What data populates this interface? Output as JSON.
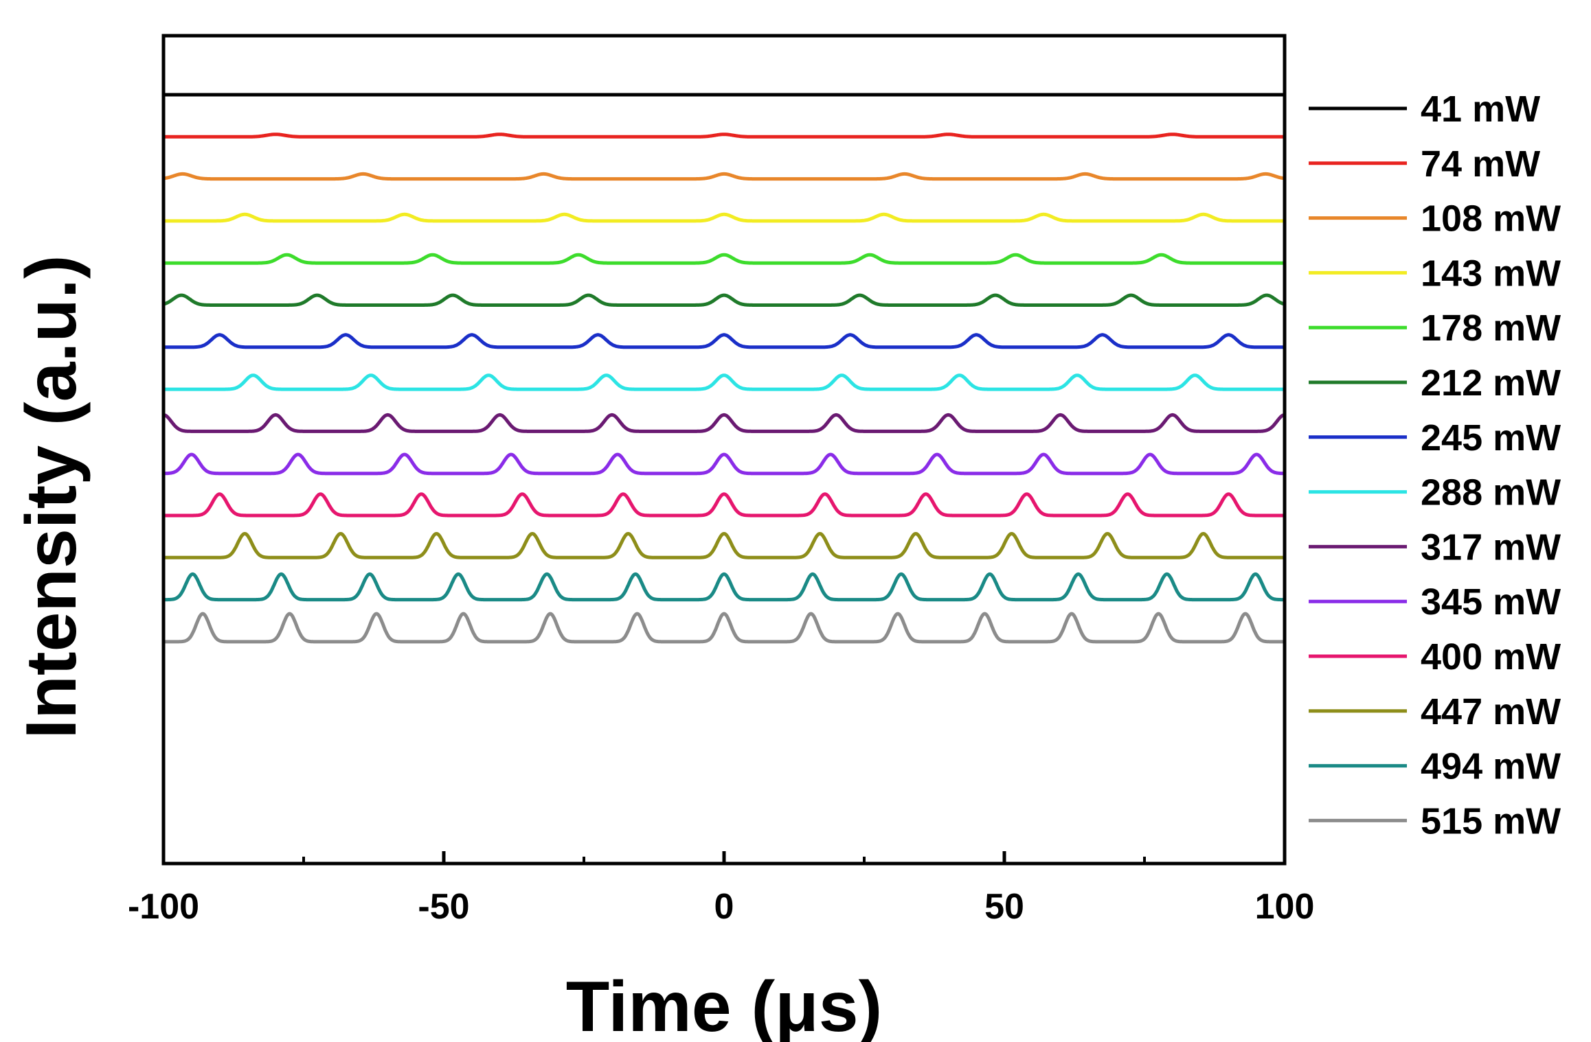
{
  "chart_data": {
    "type": "line",
    "title": "",
    "xlabel": "Time (μs)",
    "ylabel": "Intensity (a.u.)",
    "xlim": [
      -100,
      100
    ],
    "xticks": [
      -100,
      -50,
      0,
      50,
      100
    ],
    "x_tick_labels": [
      "-100",
      "-50",
      "0",
      "50",
      "100"
    ],
    "y_ticks_shown": false,
    "grid": false,
    "legend_position": "right",
    "description_units": {
      "period": "μs",
      "peak_height": "a.u. (relative)"
    },
    "series": [
      {
        "name": "41 mW",
        "color": "#000000",
        "period": null,
        "peak_times": [],
        "peak_height": 0
      },
      {
        "name": "74 mW",
        "color": "#e8231f",
        "period": 40.0,
        "peak_times": [
          -80,
          -40,
          0,
          40,
          80
        ],
        "peak_height": 0.06
      },
      {
        "name": "108 mW",
        "color": "#e8862a",
        "period": 32.2,
        "peak_times": [
          -96.6,
          -64.4,
          -32.2,
          0,
          32.2,
          64.4,
          96.6
        ],
        "peak_height": 0.12
      },
      {
        "name": "143 mW",
        "color": "#f2ec22",
        "period": 28.5,
        "peak_times": [
          -85.5,
          -57.0,
          -28.5,
          0,
          28.5,
          57.0,
          85.5
        ],
        "peak_height": 0.16
      },
      {
        "name": "178 mW",
        "color": "#3ddc2c",
        "period": 26.0,
        "peak_times": [
          -78.0,
          -52.0,
          -26.0,
          0,
          26.0,
          52.0,
          78.0
        ],
        "peak_height": 0.2
      },
      {
        "name": "212 mW",
        "color": "#1f7a2a",
        "period": 24.2,
        "peak_times": [
          -96.8,
          -72.6,
          -48.4,
          -24.2,
          0,
          24.2,
          48.4,
          72.6,
          96.8
        ],
        "peak_height": 0.24
      },
      {
        "name": "245 mW",
        "color": "#1a2fc8",
        "period": 22.5,
        "peak_times": [
          -90.0,
          -67.5,
          -45.0,
          -22.5,
          0,
          22.5,
          45.0,
          67.5,
          90.0
        ],
        "peak_height": 0.3
      },
      {
        "name": "288 mW",
        "color": "#2ce4e4",
        "period": 21.0,
        "peak_times": [
          -84.0,
          -63.0,
          -42.0,
          -21.0,
          0,
          21.0,
          42.0,
          63.0,
          84.0
        ],
        "peak_height": 0.34
      },
      {
        "name": "317 mW",
        "color": "#6a1a72",
        "period": 20.0,
        "peak_times": [
          -100,
          -80,
          -60,
          -40,
          -20,
          0,
          20,
          40,
          60,
          80,
          100
        ],
        "peak_height": 0.4
      },
      {
        "name": "345 mW",
        "color": "#8a2ce8",
        "period": 19.0,
        "peak_times": [
          -95.0,
          -76.0,
          -57.0,
          -38.0,
          -19.0,
          0,
          19.0,
          38.0,
          57.0,
          76.0,
          95.0
        ],
        "peak_height": 0.46
      },
      {
        "name": "400 mW",
        "color": "#e6166e",
        "period": 18.0,
        "peak_times": [
          -90.0,
          -72.0,
          -54.0,
          -36.0,
          -18.0,
          0,
          18.0,
          36.0,
          54.0,
          72.0,
          90.0
        ],
        "peak_height": 0.52
      },
      {
        "name": "447 mW",
        "color": "#8e8e1a",
        "period": 17.1,
        "peak_times": [
          -85.5,
          -68.4,
          -51.3,
          -34.2,
          -17.1,
          0,
          17.1,
          34.2,
          51.3,
          68.4,
          85.5
        ],
        "peak_height": 0.58
      },
      {
        "name": "494 mW",
        "color": "#1a8a86",
        "period": 15.8,
        "peak_times": [
          -94.8,
          -79.0,
          -63.2,
          -47.4,
          -31.6,
          -15.8,
          0,
          15.8,
          31.6,
          47.4,
          63.2,
          79.0,
          94.8
        ],
        "peak_height": 0.62
      },
      {
        "name": "515 mW",
        "color": "#8c8c8c",
        "period": 15.5,
        "peak_times": [
          -93.0,
          -77.5,
          -62.0,
          -46.5,
          -31.0,
          -15.5,
          0,
          15.5,
          31.0,
          46.5,
          62.0,
          77.5,
          93.0
        ],
        "peak_height": 0.68
      }
    ]
  }
}
